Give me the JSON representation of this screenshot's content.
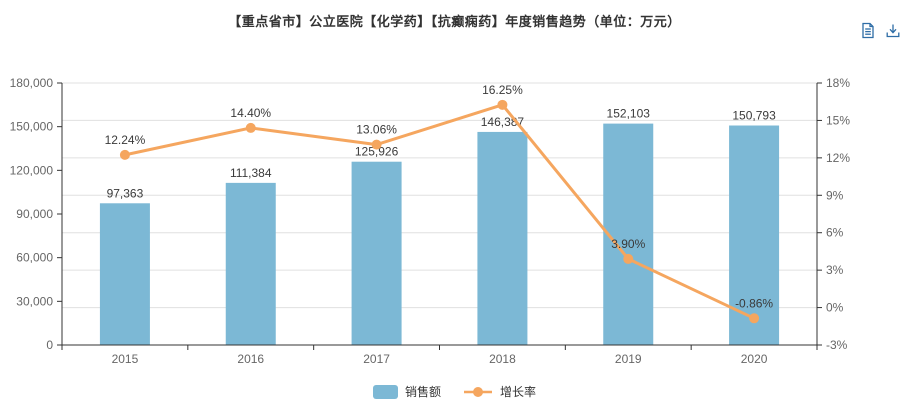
{
  "title": "【重点省市】公立医院【化学药】【抗癫痫药】年度销售趋势（单位：万元）",
  "toolbox": {
    "icons": [
      "data-view-icon",
      "save-as-image-icon"
    ]
  },
  "legend": {
    "position": "bottom",
    "items": [
      {
        "label": "销售额",
        "marker": "bar-swatch",
        "color": "#7CB8D5"
      },
      {
        "label": "增长率",
        "marker": "line-dot-swatch",
        "color": "#F5A65F"
      }
    ]
  },
  "colors": {
    "bar": "#7CB8D5",
    "line": "#F5A65F",
    "axis_line": "#333333",
    "grid_line": "#E0E0E0",
    "axis_text": "#666666",
    "data_label": "#3a3a3a",
    "title_text": "#333333",
    "toolbox_icon": "#2E6DA6",
    "background": "#FFFFFF"
  },
  "chart_data": {
    "type": "bar+line",
    "title": "【重点省市】公立医院【化学药】【抗癫痫药】年度销售趋势（单位：万元）",
    "unit": "万元",
    "categories": [
      "2015",
      "2016",
      "2017",
      "2018",
      "2019",
      "2020"
    ],
    "series": [
      {
        "name": "销售额",
        "type": "bar",
        "y_axis": "left",
        "color": "#7CB8D5",
        "values": [
          97363,
          111384,
          125926,
          146387,
          152103,
          150793
        ],
        "data_labels": [
          "97,363",
          "111,384",
          "125,926",
          "146,387",
          "152,103",
          "150,793"
        ]
      },
      {
        "name": "增长率",
        "type": "line",
        "y_axis": "right",
        "color": "#F5A65F",
        "values": [
          12.24,
          14.4,
          13.06,
          16.25,
          3.9,
          -0.86
        ],
        "data_labels": [
          "12.24%",
          "14.40%",
          "13.06%",
          "16.25%",
          "3.90%",
          "-0.86%"
        ]
      }
    ],
    "left_axis": {
      "min": 0,
      "max": 180000,
      "tick_step": 30000,
      "tick_labels": [
        "0",
        "30,000",
        "60,000",
        "90,000",
        "120,000",
        "150,000",
        "180,000"
      ]
    },
    "right_axis": {
      "min": -3,
      "max": 18,
      "tick_step": 3,
      "tick_labels": [
        "-3%",
        "0%",
        "3%",
        "6%",
        "9%",
        "12%",
        "15%",
        "18%"
      ]
    },
    "grid": true,
    "grid_follows": "right_axis",
    "legend_position": "bottom"
  }
}
